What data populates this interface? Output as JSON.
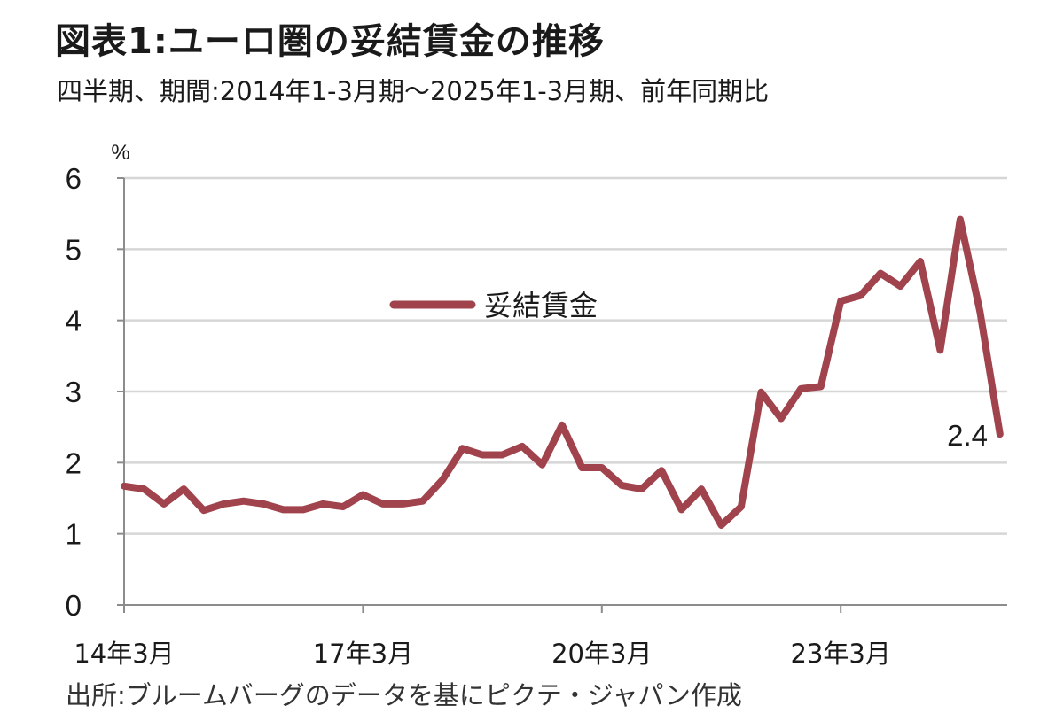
{
  "header": {
    "title": "図表1:ユーロ圏の妥結賃金の推移",
    "subtitle": "四半期、期間:2014年1-3月期～2025年1-3月期、前年同期比"
  },
  "footer": {
    "source": "出所:ブルームバーグのデータを基にピクテ・ジャパン作成"
  },
  "chart_data": {
    "type": "line",
    "unit_label": "%",
    "ylim": [
      0,
      6
    ],
    "yticks": [
      0,
      1,
      2,
      3,
      4,
      5,
      6
    ],
    "grid": true,
    "legend_position": "center",
    "x_tick_labels": [
      {
        "label": "14年3月",
        "index": 0
      },
      {
        "label": "17年3月",
        "index": 12
      },
      {
        "label": "20年3月",
        "index": 24
      },
      {
        "label": "23年3月",
        "index": 36
      }
    ],
    "series": [
      {
        "name": "妥結賃金",
        "color": "#a0434c",
        "values": [
          1.67,
          1.63,
          1.42,
          1.63,
          1.33,
          1.42,
          1.46,
          1.42,
          1.34,
          1.34,
          1.42,
          1.38,
          1.55,
          1.42,
          1.42,
          1.46,
          1.76,
          2.2,
          2.11,
          2.11,
          2.23,
          1.97,
          2.53,
          1.93,
          1.93,
          1.68,
          1.63,
          1.89,
          1.34,
          1.63,
          1.12,
          1.38,
          2.99,
          2.62,
          3.04,
          3.07,
          4.27,
          4.35,
          4.66,
          4.48,
          4.83,
          3.58,
          5.42,
          4.12,
          2.4
        ]
      }
    ],
    "annotations": [
      {
        "text": "2.4",
        "index": 44
      }
    ]
  }
}
